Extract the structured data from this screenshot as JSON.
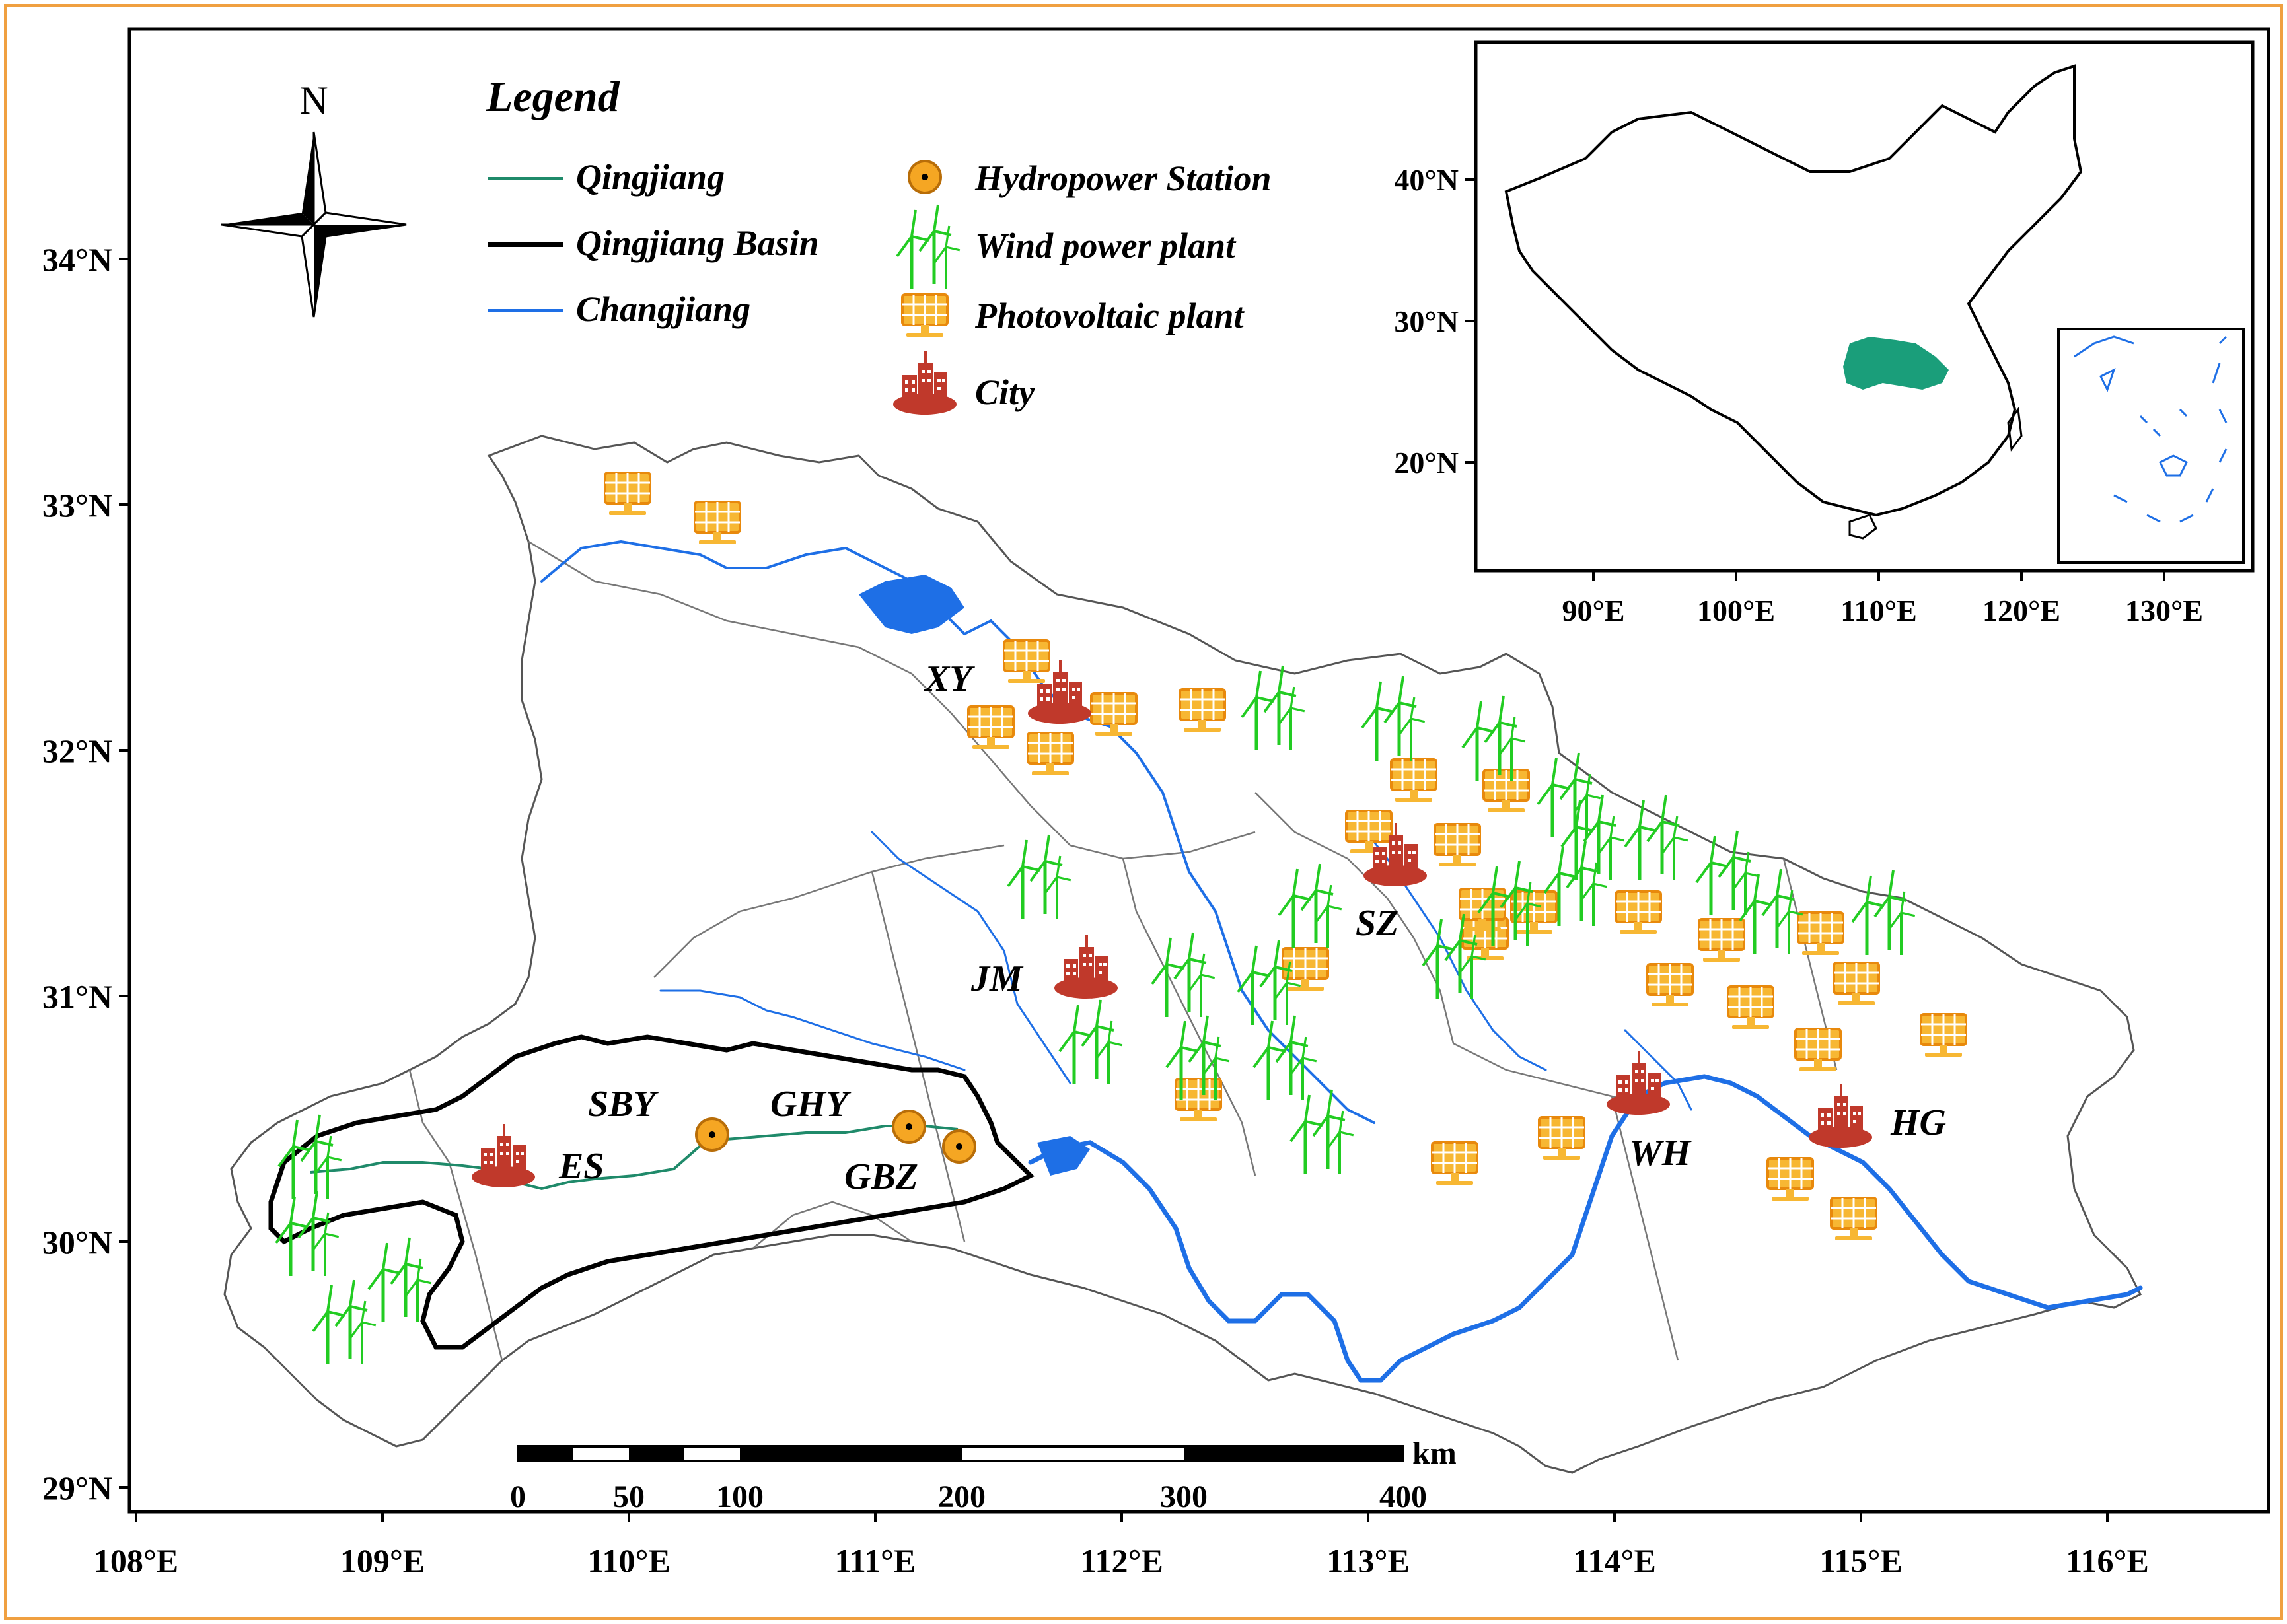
{
  "north_label": "N",
  "legend": {
    "title": "Legend",
    "items": [
      {
        "label": "Qingjiang",
        "symbol": "line",
        "color": "#1f8a6a"
      },
      {
        "label": "Qingjiang Basin",
        "symbol": "thick-line",
        "color": "#000000"
      },
      {
        "label": "Changjiang",
        "symbol": "line",
        "color": "#1e6fe6"
      },
      {
        "label": "Hydropower Station",
        "symbol": "hydro-icon",
        "color": "#f5a623"
      },
      {
        "label": "Wind power plant",
        "symbol": "wind-icon",
        "color": "#22cc22"
      },
      {
        "label": "Photovoltaic plant",
        "symbol": "pv-icon",
        "color": "#f5a623"
      },
      {
        "label": "City",
        "symbol": "city-icon",
        "color": "#c0392b"
      }
    ]
  },
  "axes": {
    "x_ticks": [
      "108°E",
      "109°E",
      "110°E",
      "111°E",
      "112°E",
      "113°E",
      "114°E",
      "115°E",
      "116°E"
    ],
    "y_ticks": [
      "29°N",
      "30°N",
      "31°N",
      "32°N",
      "33°N",
      "34°N"
    ]
  },
  "inset": {
    "x_ticks": [
      "90°E",
      "100°E",
      "110°E",
      "120°E",
      "130°E"
    ],
    "y_ticks": [
      "20°N",
      "30°N",
      "40°N"
    ],
    "highlight_color": "#1a9e7a"
  },
  "scale_bar": {
    "unit": "km",
    "ticks": [
      "0",
      "50",
      "100",
      "200",
      "300",
      "400"
    ]
  },
  "cities": [
    {
      "code": "XY",
      "lon": 111.75,
      "lat": 32.2
    },
    {
      "code": "SZ",
      "lon": 113.15,
      "lat": 31.55
    },
    {
      "code": "JM",
      "lon": 112.3,
      "lat": 31.05
    },
    {
      "code": "ES",
      "lon": 109.5,
      "lat": 30.35
    },
    {
      "code": "WH",
      "lon": 114.3,
      "lat": 30.6
    },
    {
      "code": "HG",
      "lon": 115.0,
      "lat": 30.45
    }
  ],
  "hydro_stations": [
    {
      "code": "SBY",
      "lon": 110.35,
      "lat": 30.45
    },
    {
      "code": "GHY",
      "lon": 111.15,
      "lat": 30.48
    },
    {
      "code": "GBZ",
      "lon": 111.35,
      "lat": 30.4
    }
  ],
  "colors": {
    "wind": "#22cc22",
    "pv": "#f5a623",
    "city": "#c0392b",
    "changjiang": "#1e6fe6",
    "qingjiang": "#1f8a6a",
    "province_border": "#555555",
    "frame": "#f0a040"
  }
}
